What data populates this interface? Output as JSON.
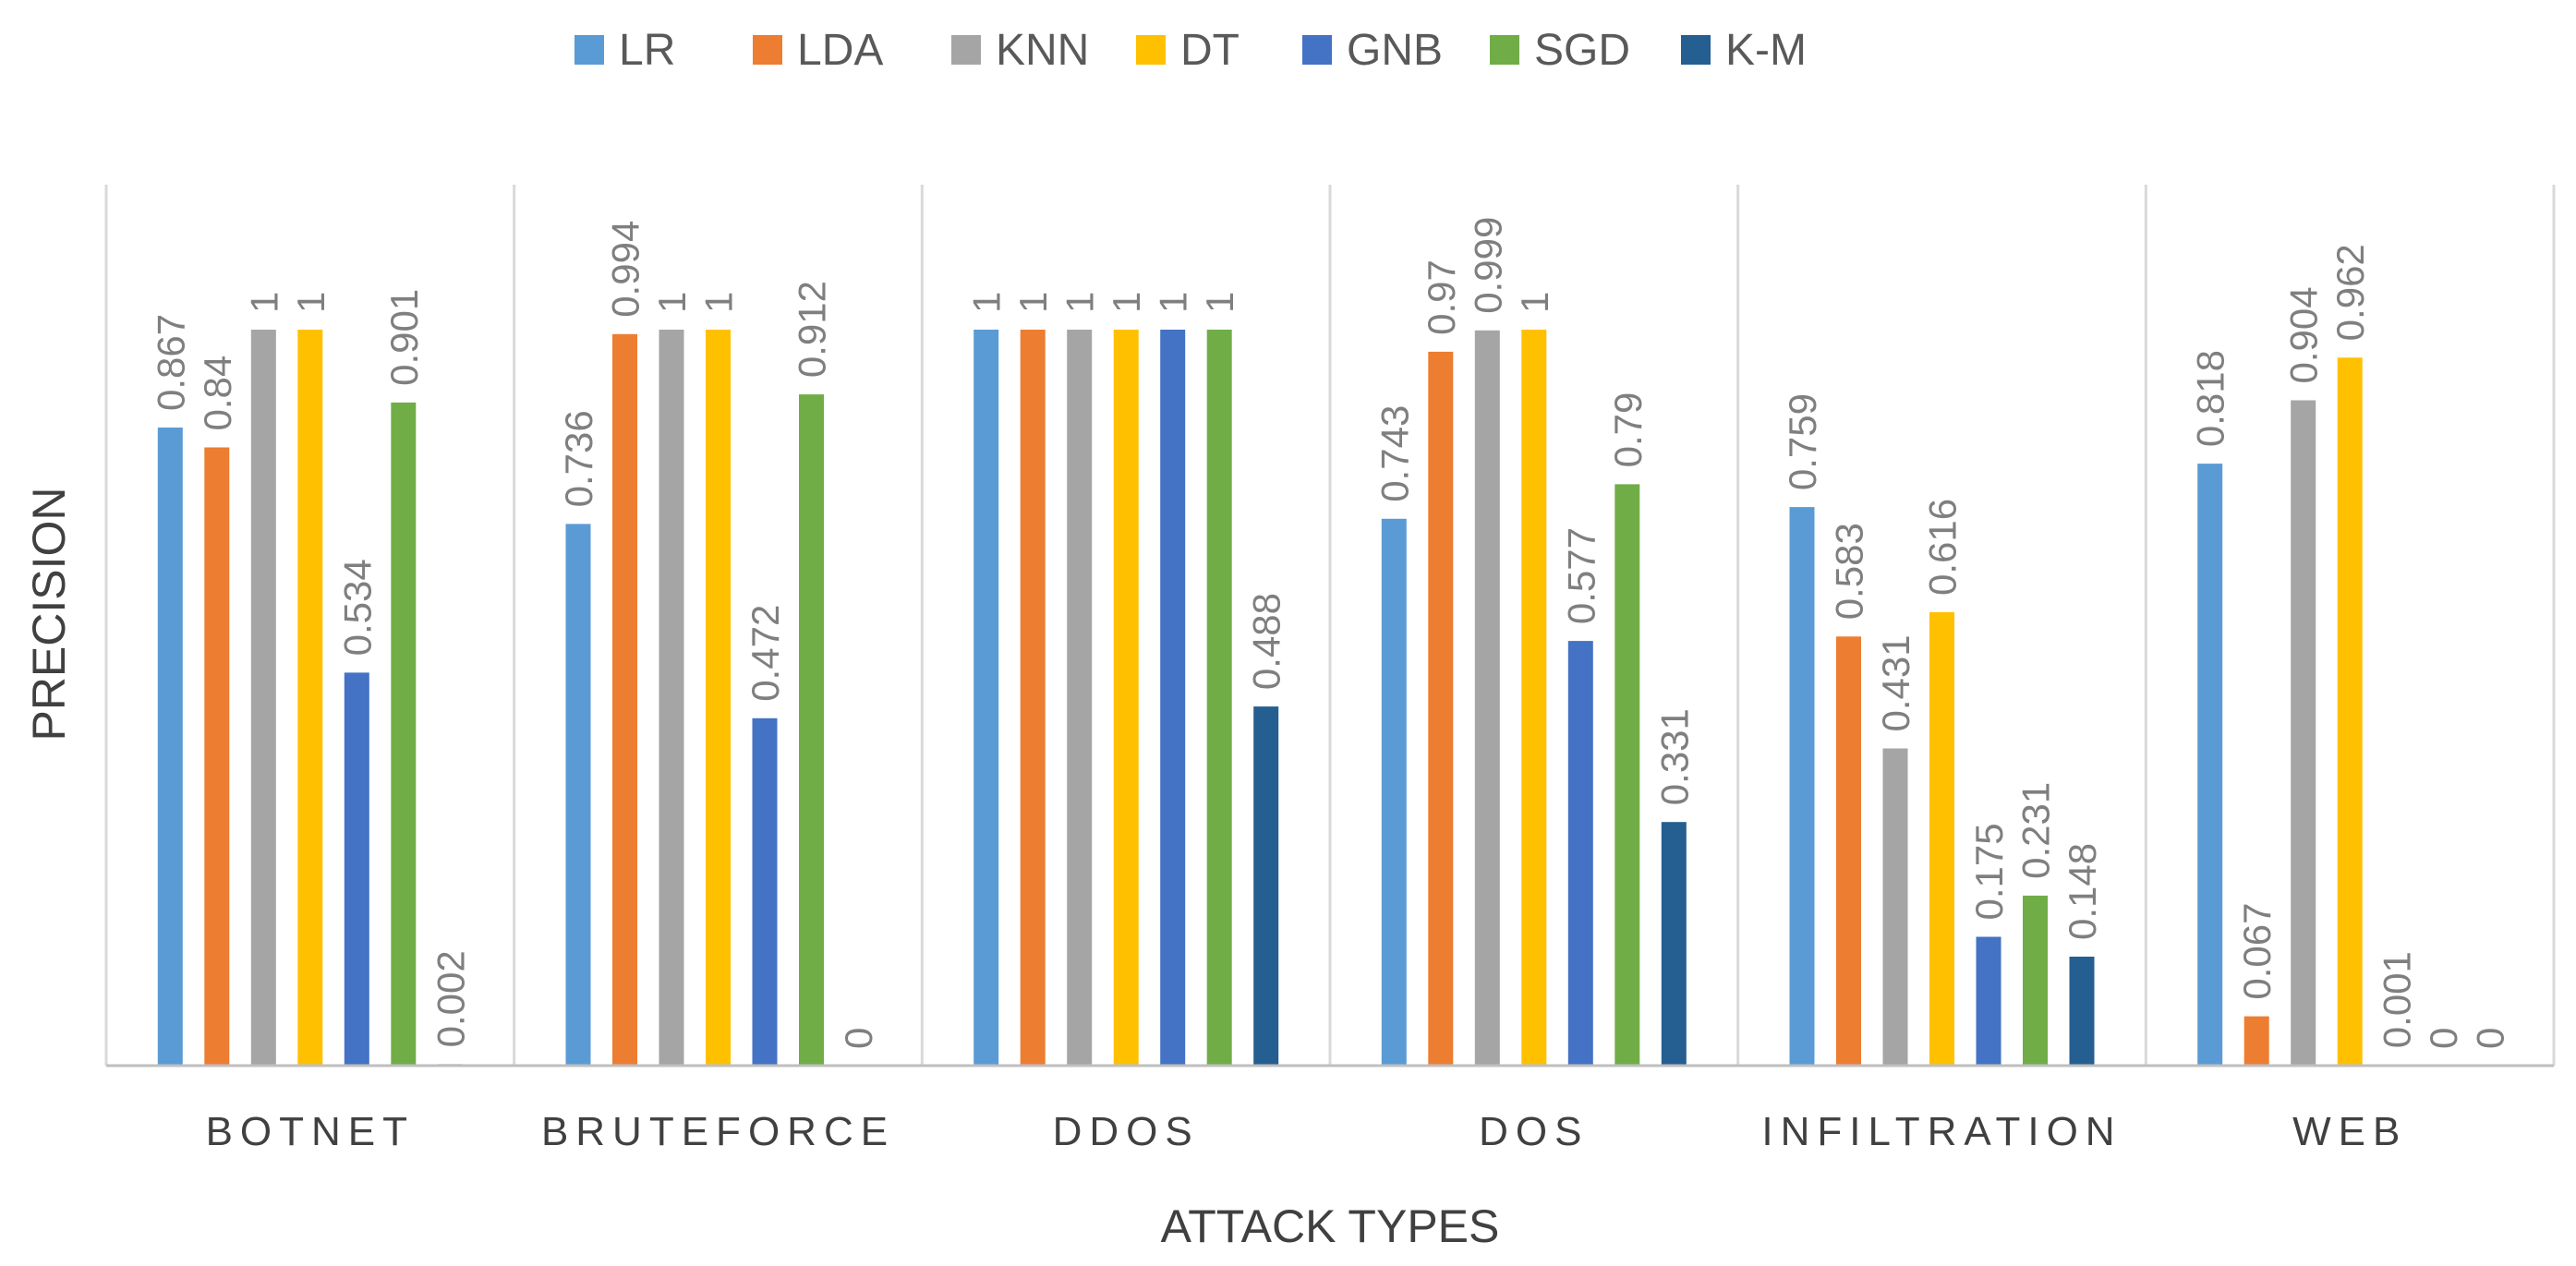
{
  "chart_data": {
    "type": "bar",
    "title": "",
    "xlabel": "ATTACK TYPES",
    "ylabel": "PRECISION",
    "ylim": [
      0,
      1
    ],
    "grid": false,
    "legend_position": "top",
    "categories": [
      "BOTNET",
      "BRUTEFORCE",
      "DDOS",
      "DOS",
      "INFILTRATION",
      "WEB"
    ],
    "series": [
      {
        "name": "LR",
        "color": "#5b9bd5",
        "values": [
          0.867,
          0.736,
          1,
          0.743,
          0.759,
          0.818
        ],
        "labels": [
          "0.867",
          "0.736",
          "1",
          "0.743",
          "0.759",
          "0.818"
        ]
      },
      {
        "name": "LDA",
        "color": "#ed7d31",
        "values": [
          0.84,
          0.994,
          1,
          0.97,
          0.583,
          0.067
        ],
        "labels": [
          "0.84",
          "0.994",
          "1",
          "0.97",
          "0.583",
          "0.067"
        ]
      },
      {
        "name": "KNN",
        "color": "#a5a5a5",
        "values": [
          1,
          1,
          1,
          0.999,
          0.431,
          0.904
        ],
        "labels": [
          "1",
          "1",
          "1",
          "0.999",
          "0.431",
          "0.904"
        ]
      },
      {
        "name": "DT",
        "color": "#ffc000",
        "values": [
          1,
          1,
          1,
          1,
          0.616,
          0.962
        ],
        "labels": [
          "1",
          "1",
          "1",
          "1",
          "0.616",
          "0.962"
        ]
      },
      {
        "name": "GNB",
        "color": "#4472c4",
        "values": [
          0.534,
          0.472,
          1,
          0.577,
          0.175,
          0.001
        ],
        "labels": [
          "0.534",
          "0.472",
          "1",
          "0.577",
          "0.175",
          "0.001"
        ]
      },
      {
        "name": "SGD",
        "color": "#70ad47",
        "values": [
          0.901,
          0.912,
          1,
          0.79,
          0.231,
          0
        ],
        "labels": [
          "0.901",
          "0.912",
          "1",
          "0.79",
          "0.231",
          "0"
        ]
      },
      {
        "name": "K-M",
        "color": "#255e91",
        "values": [
          0.002,
          0,
          0.488,
          0.331,
          0.148,
          0
        ],
        "labels": [
          "0.002",
          "0",
          "0.488",
          "0.331",
          "0.148",
          "0"
        ]
      }
    ]
  }
}
